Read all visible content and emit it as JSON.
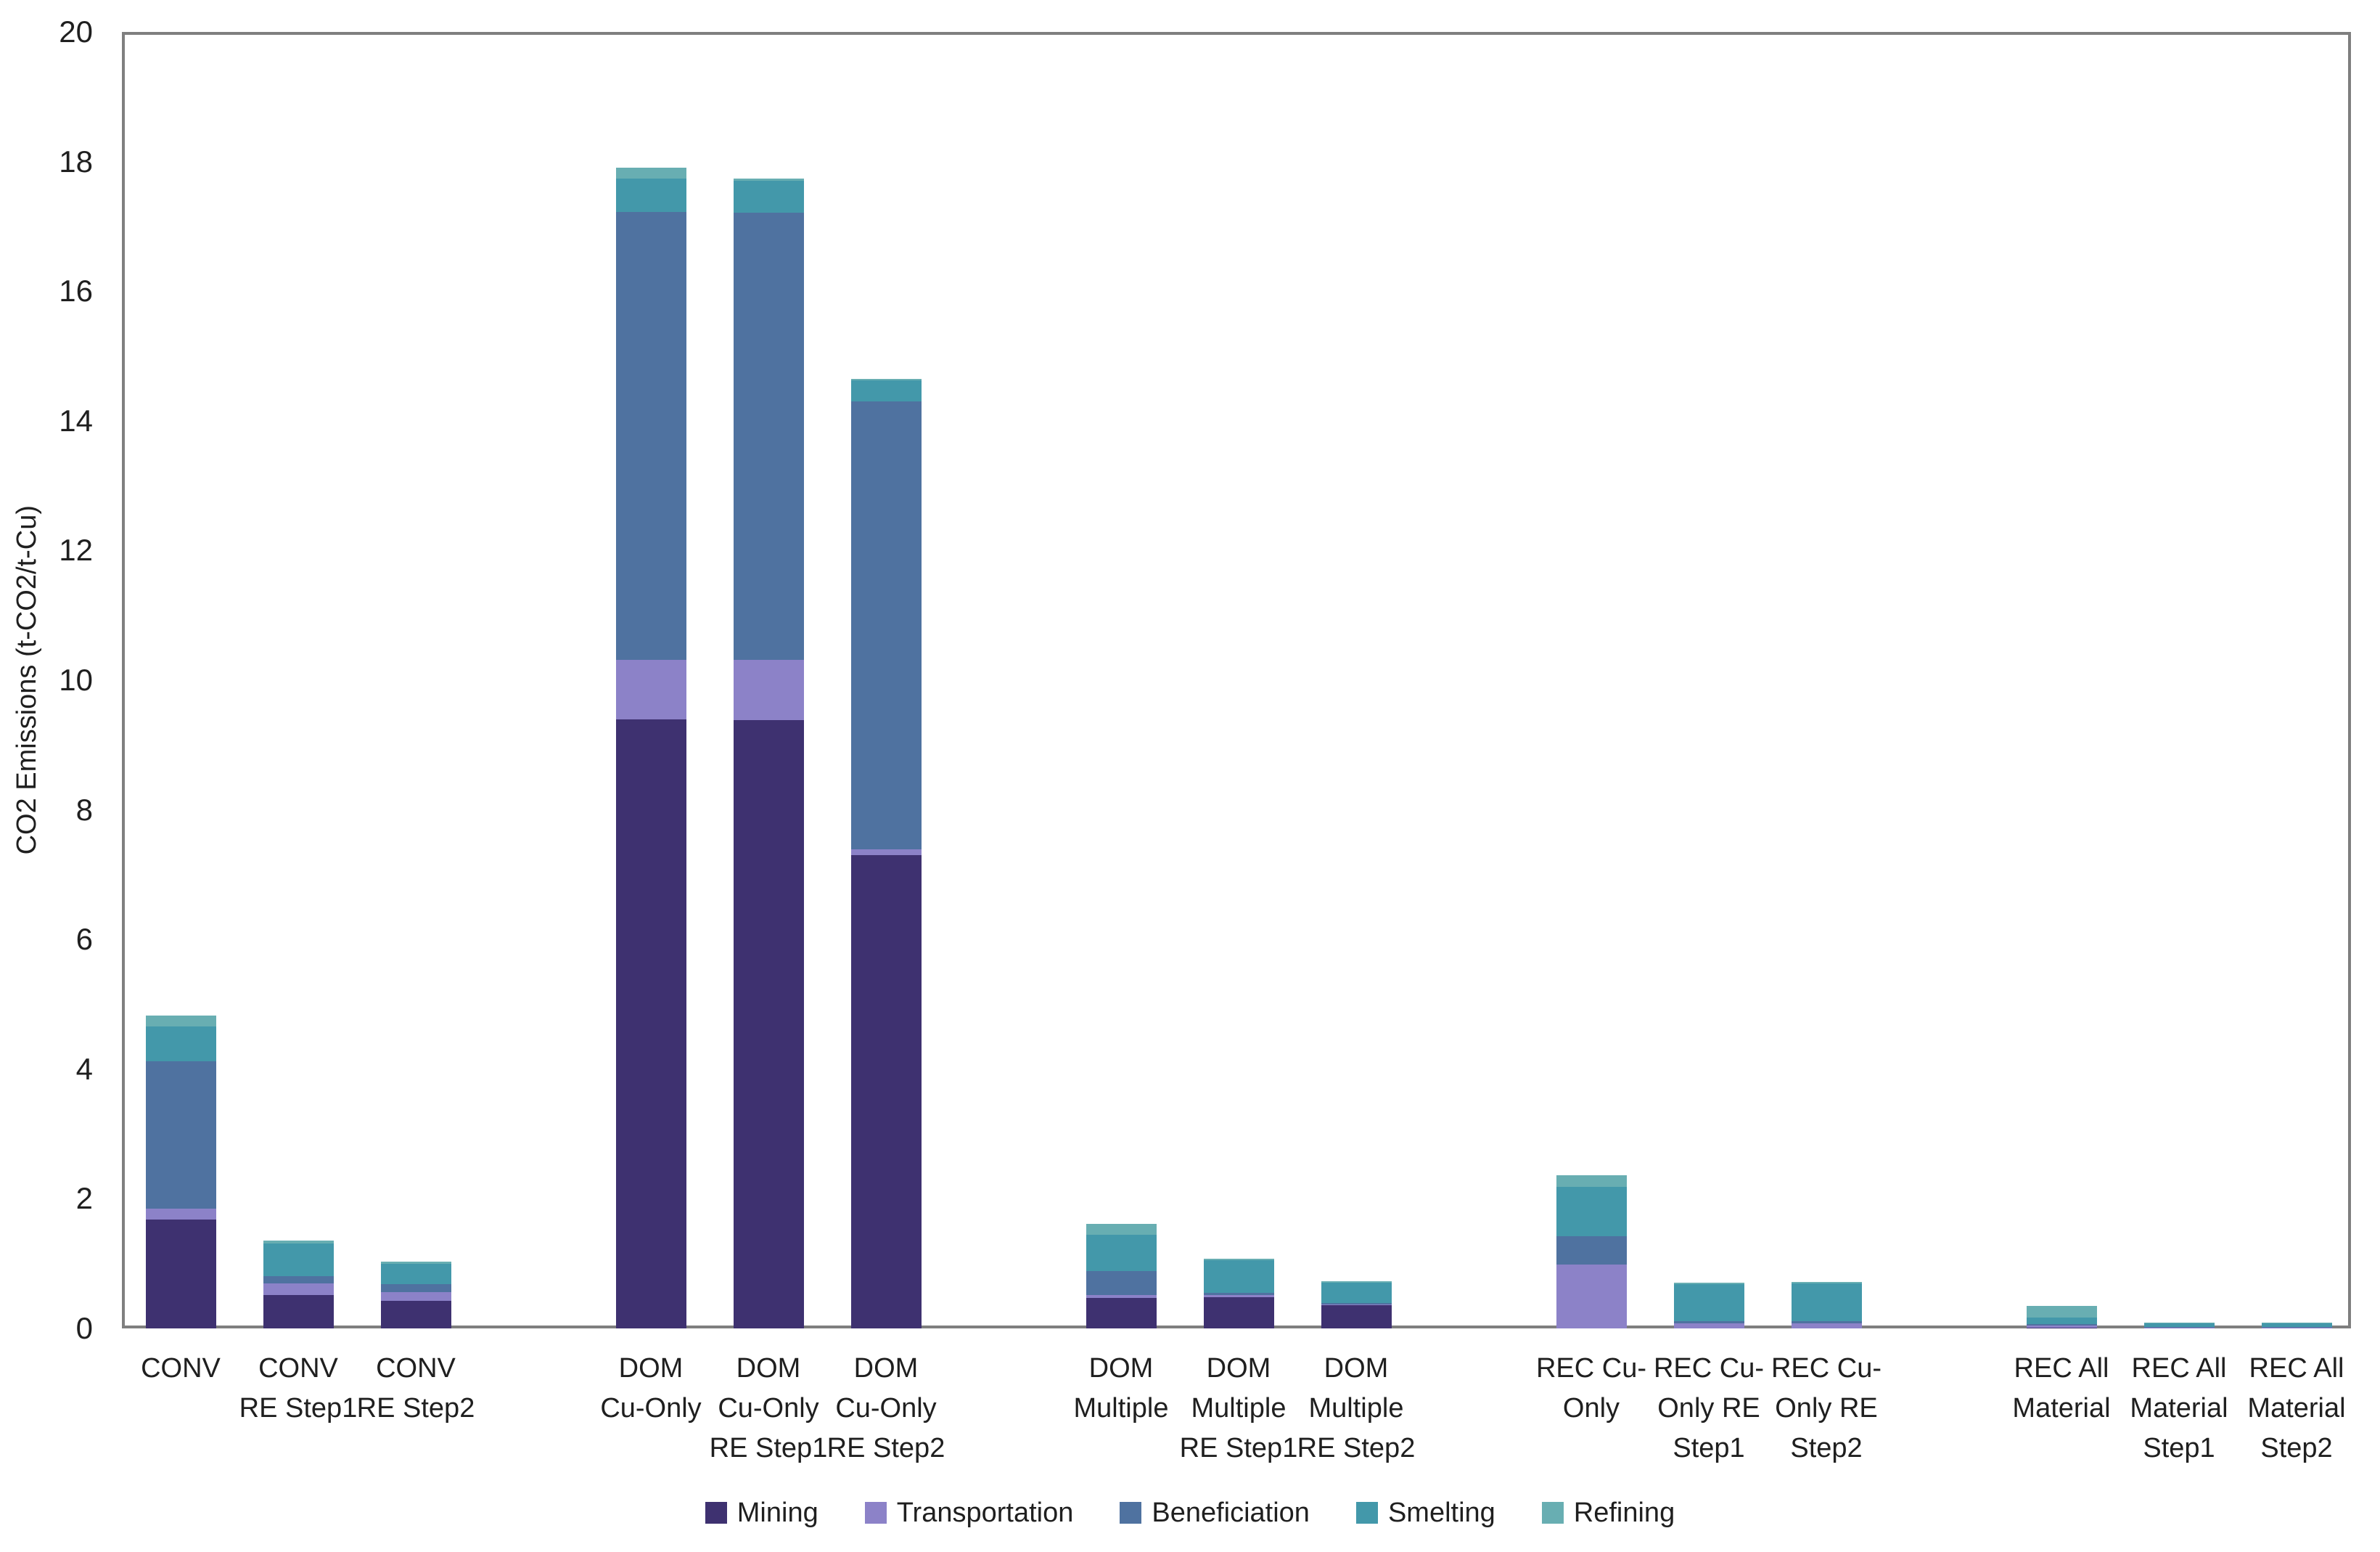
{
  "chart_data": {
    "type": "bar",
    "stacked": true,
    "title": "",
    "xlabel": "",
    "ylabel": "CO2 Emissions (t-CO2/t-Cu)",
    "ylim": [
      0,
      20
    ],
    "ytick_step": 2,
    "y_ticks": [
      0,
      2,
      4,
      6,
      8,
      10,
      12,
      14,
      16,
      18,
      20
    ],
    "grid": false,
    "legend_position": "bottom",
    "axis_color": "#7f7f7f",
    "text_color": "#1f1f1f",
    "background_color": "#ffffff",
    "categories": [
      "CONV",
      "CONV RE Step1",
      "CONV RE Step2",
      "DOM Cu-Only",
      "DOM Cu-Only RE Step1",
      "DOM Cu-Only RE Step2",
      "DOM Multiple",
      "DOM Multiple RE Step1",
      "DOM Multiple RE Step2",
      "REC Cu-Only",
      "REC Cu-Only RE Step1",
      "REC Cu-Only RE Step2",
      "REC All Material",
      "REC All Material Step1",
      "REC All Material Step2"
    ],
    "category_label_lines": [
      [
        "CONV"
      ],
      [
        "CONV",
        "RE Step1"
      ],
      [
        "CONV",
        "RE Step2"
      ],
      [
        "DOM",
        "Cu-Only"
      ],
      [
        "DOM",
        "Cu-Only",
        "RE Step1"
      ],
      [
        "DOM",
        "Cu-Only",
        "RE Step2"
      ],
      [
        "DOM",
        "Multiple"
      ],
      [
        "DOM",
        "Multiple",
        "RE Step1"
      ],
      [
        "DOM",
        "Multiple",
        "RE Step2"
      ],
      [
        "REC Cu-",
        "Only"
      ],
      [
        "REC Cu-",
        "Only RE",
        "Step1"
      ],
      [
        "REC Cu-",
        "Only RE",
        "Step2"
      ],
      [
        "REC All",
        "Material"
      ],
      [
        "REC All",
        "Material",
        "Step1"
      ],
      [
        "REC All",
        "Material",
        "Step2"
      ]
    ],
    "group_size": 3,
    "series": [
      {
        "name": "Mining",
        "color": "#3e3170",
        "values": [
          1.68,
          0.52,
          0.43,
          9.4,
          9.38,
          7.3,
          0.47,
          0.48,
          0.36,
          0,
          0,
          0,
          0.01,
          0,
          0
        ]
      },
      {
        "name": "Transportation",
        "color": "#8c82c8",
        "values": [
          0.17,
          0.17,
          0.13,
          0.91,
          0.93,
          0.09,
          0.05,
          0.04,
          0.01,
          0.98,
          0.08,
          0.08,
          0.03,
          0.01,
          0.01
        ]
      },
      {
        "name": "Beneficiation",
        "color": "#4f72a0",
        "values": [
          2.27,
          0.12,
          0.12,
          6.91,
          6.9,
          6.91,
          0.36,
          0.03,
          0.02,
          0.44,
          0.03,
          0.03,
          0.03,
          0.01,
          0.01
        ]
      },
      {
        "name": "Smelting",
        "color": "#4398aa",
        "values": [
          0.54,
          0.5,
          0.32,
          0.52,
          0.49,
          0.32,
          0.56,
          0.5,
          0.31,
          0.76,
          0.57,
          0.58,
          0.1,
          0.06,
          0.06
        ]
      },
      {
        "name": "Refining",
        "color": "#68aeb2",
        "values": [
          0.17,
          0.04,
          0.03,
          0.17,
          0.04,
          0.03,
          0.17,
          0.03,
          0.03,
          0.18,
          0.03,
          0.03,
          0.18,
          0.01,
          0.01
        ]
      }
    ]
  }
}
